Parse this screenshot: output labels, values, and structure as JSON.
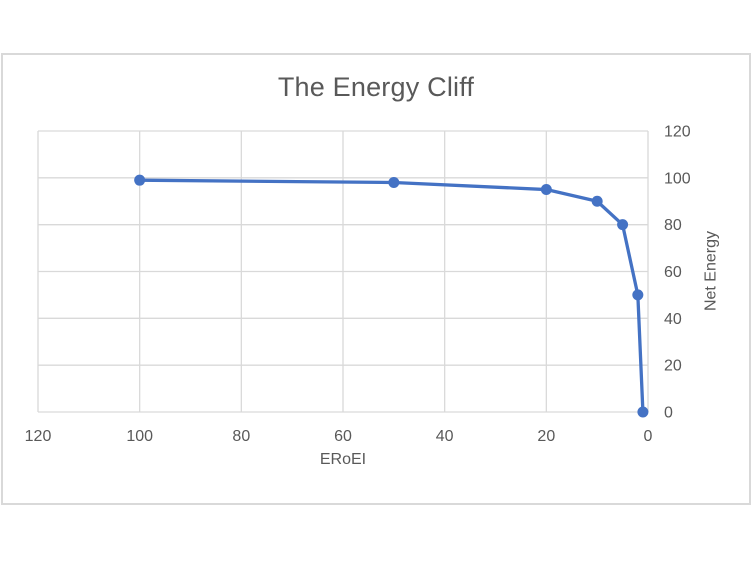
{
  "chart_data": {
    "type": "line",
    "title": "The Energy Cliff",
    "xlabel": "ERoEI",
    "ylabel": "Net Energy",
    "series": [
      {
        "name": "Net Energy",
        "x": [
          100,
          50,
          20,
          10,
          5,
          2,
          1
        ],
        "y": [
          99,
          98,
          95,
          90,
          80,
          50,
          0
        ]
      }
    ],
    "x_ticks": [
      120,
      100,
      80,
      60,
      40,
      20,
      0
    ],
    "y_ticks": [
      0,
      20,
      40,
      60,
      80,
      100,
      120
    ],
    "xlim": [
      120,
      0
    ],
    "ylim": [
      0,
      120
    ],
    "x_axis_reversed": true,
    "y_axis_side": "right",
    "grid": true,
    "legend": false,
    "marker": "circle",
    "colors": {
      "series": "#4472C4",
      "gridline": "#D9D9D9",
      "text": "#595959",
      "chart_border": "#D9D9D9"
    }
  }
}
